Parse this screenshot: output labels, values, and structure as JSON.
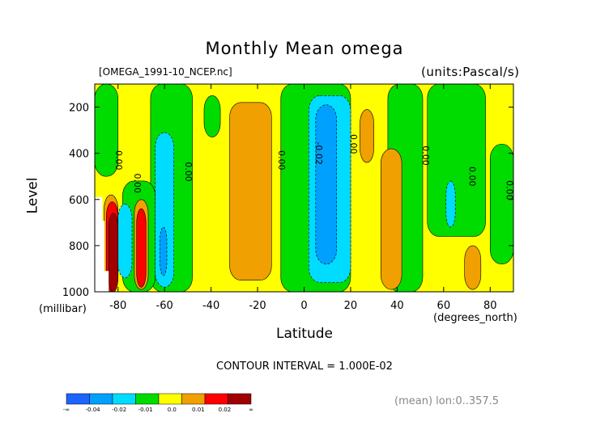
{
  "chart_data": {
    "type": "heatmap",
    "title": "Monthly Mean omega",
    "file_label": "[OMEGA_1991-10_NCEP.nc]",
    "units_label": "(units:Pascal/s)",
    "xlabel": "Latitude",
    "x_unit_label": "(degrees_north)",
    "ylabel": "Level",
    "y_unit_label": "(millibar)",
    "xlim": [
      -90,
      90
    ],
    "ylim": [
      1000,
      100
    ],
    "x_ticks": [
      -80,
      -60,
      -40,
      -20,
      0,
      20,
      40,
      60,
      80
    ],
    "x_tick_labels": [
      "-80",
      "-60",
      "-40",
      "-20",
      "0",
      "20",
      "40",
      "60",
      "80"
    ],
    "y_ticks": [
      200,
      400,
      600,
      800,
      1000
    ],
    "y_tick_labels": [
      "200",
      "400",
      "600",
      "800",
      "1000"
    ],
    "contour_interval_label": "CONTOUR INTERVAL = 1.000E-02",
    "footer_label": "(mean) lon:0..357.5",
    "colorbar": {
      "colors": [
        "#1e64ff",
        "#00a0ff",
        "#00dcff",
        "#00dc00",
        "#ffff00",
        "#f0a000",
        "#ff0000",
        "#a00000"
      ],
      "labels": [
        "-∞",
        "-0.04",
        "-0.02",
        "-0.01",
        "0.0",
        "0.01",
        "0.02",
        "∞"
      ]
    },
    "contour_labels": [
      {
        "lat": -81,
        "lev": 430,
        "text": "0.00"
      },
      {
        "lat": -73,
        "lev": 530,
        "text": "0.00"
      },
      {
        "lat": -51,
        "lev": 480,
        "text": "0.00"
      },
      {
        "lat": -11,
        "lev": 430,
        "text": "0.00"
      },
      {
        "lat": 5,
        "lev": 400,
        "text": "-0.02"
      },
      {
        "lat": 20,
        "lev": 360,
        "text": "0.00"
      },
      {
        "lat": 51,
        "lev": 410,
        "text": "0.00"
      },
      {
        "lat": 71,
        "lev": 500,
        "text": "0.00"
      },
      {
        "lat": 87,
        "lev": 560,
        "text": "0.00"
      }
    ],
    "regions": [
      {
        "level": "0.00 to 0.01",
        "color": "#ffff00",
        "shape": "background",
        "lat_range": [
          -90,
          90
        ],
        "lev_range": [
          100,
          1000
        ]
      },
      {
        "level": "-0.01 to 0.00",
        "color": "#00dc00",
        "lat_range": [
          -66,
          -48
        ],
        "lev_range": [
          100,
          1000
        ]
      },
      {
        "level": "-0.01 to 0.00",
        "color": "#00dc00",
        "lat_range": [
          -90,
          -80
        ],
        "lev_range": [
          100,
          500
        ]
      },
      {
        "level": "-0.01 to 0.00",
        "color": "#00dc00",
        "lat_range": [
          -78,
          -64
        ],
        "lev_range": [
          520,
          1000
        ]
      },
      {
        "level": "-0.01 to 0.00",
        "color": "#00dc00",
        "lat_range": [
          -43,
          -36
        ],
        "lev_range": [
          150,
          330
        ]
      },
      {
        "level": "-0.01 to 0.00",
        "color": "#00dc00",
        "lat_range": [
          -10,
          20
        ],
        "lev_range": [
          100,
          1000
        ]
      },
      {
        "level": "-0.01 to 0.00",
        "color": "#00dc00",
        "lat_range": [
          36,
          51
        ],
        "lev_range": [
          100,
          1000
        ]
      },
      {
        "level": "-0.01 to 0.00",
        "color": "#00dc00",
        "lat_range": [
          53,
          78
        ],
        "lev_range": [
          100,
          760
        ]
      },
      {
        "level": "-0.01 to 0.00",
        "color": "#00dc00",
        "lat_range": [
          80,
          90
        ],
        "lev_range": [
          360,
          880
        ]
      },
      {
        "level": "0.01 to 0.02",
        "color": "#f0a000",
        "lat_range": [
          -32,
          -14
        ],
        "lev_range": [
          180,
          950
        ]
      },
      {
        "level": "0.01 to 0.02",
        "color": "#f0a000",
        "lat_range": [
          24,
          30
        ],
        "lev_range": [
          210,
          440
        ]
      },
      {
        "level": "0.01 to 0.02",
        "color": "#f0a000",
        "lat_range": [
          33,
          42
        ],
        "lev_range": [
          380,
          990
        ]
      },
      {
        "level": "0.01 to 0.02",
        "color": "#f0a000",
        "lat_range": [
          69,
          76
        ],
        "lev_range": [
          800,
          990
        ]
      },
      {
        "level": "-0.02 to -0.01",
        "color": "#00dcff",
        "lat_range": [
          2,
          20
        ],
        "lev_range": [
          150,
          960
        ]
      },
      {
        "level": "-0.02 to -0.01",
        "color": "#00dcff",
        "lat_range": [
          -64,
          -56
        ],
        "lev_range": [
          310,
          980
        ]
      },
      {
        "level": "-0.02 to -0.01",
        "color": "#00dcff",
        "lat_range": [
          -80,
          -74
        ],
        "lev_range": [
          620,
          940
        ]
      },
      {
        "level": "-0.02 to -0.01",
        "color": "#00dcff",
        "lat_range": [
          61,
          65
        ],
        "lev_range": [
          520,
          720
        ]
      },
      {
        "level": "-0.04 to -0.02",
        "color": "#00a0ff",
        "lat_range": [
          5,
          14
        ],
        "lev_range": [
          190,
          880
        ]
      },
      {
        "level": "-0.04 to -0.02",
        "color": "#00a0ff",
        "lat_range": [
          -62,
          -59
        ],
        "lev_range": [
          720,
          930
        ]
      },
      {
        "level": "0.01 to 0.02",
        "color": "#f0a000",
        "lat_range": [
          -73,
          -67
        ],
        "lev_range": [
          600,
          990
        ]
      },
      {
        "level": "> 0.02",
        "color": "#ff0000",
        "lat_range": [
          -72,
          -68
        ],
        "lev_range": [
          640,
          980
        ]
      },
      {
        "level": "0.01 to 0.02",
        "color": "#f0a000",
        "lat_range": [
          -86,
          -80
        ],
        "lev_range": [
          580,
          1000
        ]
      },
      {
        "level": "> 0.02",
        "color": "#ff0000",
        "lat_range": [
          -85,
          -80
        ],
        "lev_range": [
          610,
          1000
        ]
      },
      {
        "level": "> 0.04",
        "color": "#a00000",
        "lat_range": [
          -84,
          -80
        ],
        "lev_range": [
          660,
          1000
        ]
      },
      {
        "level": "missing (below ground)",
        "color": "#ffffff",
        "shape": "step",
        "lat_range": [
          -90,
          -84
        ],
        "lev_range": [
          590,
          1000
        ]
      }
    ]
  }
}
